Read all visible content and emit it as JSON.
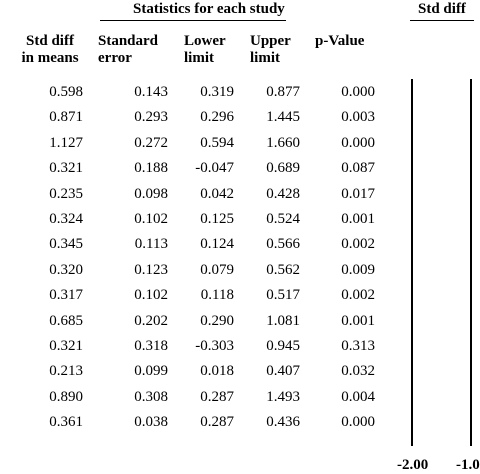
{
  "header": {
    "stats_title": "Statistics for each study",
    "right_title": "Std diff"
  },
  "columns": [
    {
      "line1": "Std diff",
      "line2": "in means"
    },
    {
      "line1": "Standard",
      "line2": "error"
    },
    {
      "line1": "Lower",
      "line2": "limit"
    },
    {
      "line1": "Upper",
      "line2": "limit"
    },
    {
      "line1": "",
      "line2": "p-Value"
    }
  ],
  "rows": [
    [
      "0.598",
      "0.143",
      "0.319",
      "0.877",
      "0.000"
    ],
    [
      "0.871",
      "0.293",
      "0.296",
      "1.445",
      "0.003"
    ],
    [
      "1.127",
      "0.272",
      "0.594",
      "1.660",
      "0.000"
    ],
    [
      "0.321",
      "0.188",
      "-0.047",
      "0.689",
      "0.087"
    ],
    [
      "0.235",
      "0.098",
      "0.042",
      "0.428",
      "0.017"
    ],
    [
      "0.324",
      "0.102",
      "0.125",
      "0.524",
      "0.001"
    ],
    [
      "0.345",
      "0.113",
      "0.124",
      "0.566",
      "0.002"
    ],
    [
      "0.320",
      "0.123",
      "0.079",
      "0.562",
      "0.009"
    ],
    [
      "0.317",
      "0.102",
      "0.118",
      "0.517",
      "0.002"
    ],
    [
      "0.685",
      "0.202",
      "0.290",
      "1.081",
      "0.001"
    ],
    [
      "0.321",
      "0.318",
      "-0.303",
      "0.945",
      "0.313"
    ],
    [
      "0.213",
      "0.099",
      "0.018",
      "0.407",
      "0.032"
    ],
    [
      "0.890",
      "0.308",
      "0.287",
      "1.493",
      "0.004"
    ],
    [
      "0.361",
      "0.038",
      "0.287",
      "0.436",
      "0.000"
    ]
  ],
  "axis": {
    "ticks": [
      "-2.00",
      "-1.0"
    ]
  }
}
